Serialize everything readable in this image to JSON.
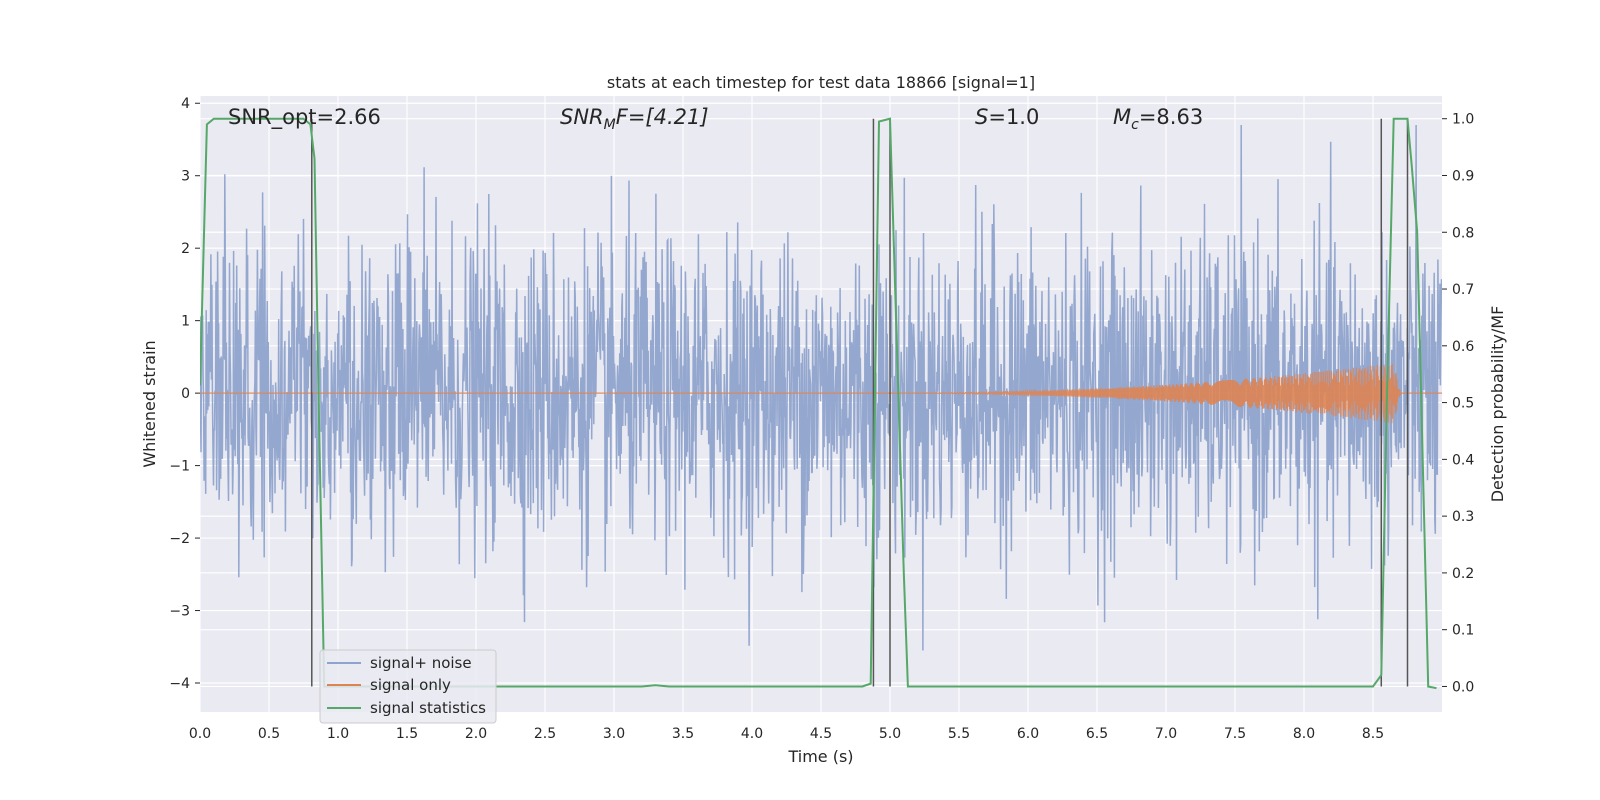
{
  "chart_data": {
    "type": "line",
    "title": "stats at each timestep for test data 18866 [signal=1]",
    "xlabel": "Time (s)",
    "ylabel": "Whitened strain",
    "ylabel_right": "Detection probability/MF",
    "xlim": [
      0,
      9.0
    ],
    "ylim": [
      -4.4,
      4.1
    ],
    "ylim_right": [
      -0.045,
      1.04
    ],
    "x_ticks": [
      0.0,
      0.5,
      1.0,
      1.5,
      2.0,
      2.5,
      3.0,
      3.5,
      4.0,
      4.5,
      5.0,
      5.5,
      6.0,
      6.5,
      7.0,
      7.5,
      8.0,
      8.5
    ],
    "y_ticks": [
      -4,
      -3,
      -2,
      -1,
      0,
      1,
      2,
      3,
      4
    ],
    "y_ticks_right": [
      0.0,
      0.1,
      0.2,
      0.3,
      0.4,
      0.5,
      0.6,
      0.7,
      0.8,
      0.9,
      1.0
    ],
    "annotations": {
      "snr_opt": "SNR_opt=2.66",
      "snr_mf_main": "SNR",
      "snr_mf_sub": "M",
      "snr_mf_rest": "F=[4.21]",
      "s_label_italic": "S",
      "s_label_rest": "=1.0",
      "mc_main": "M",
      "mc_sub": "c",
      "mc_rest": "=8.63"
    },
    "legend": [
      "signal+ noise",
      "signal only",
      "signal statistics"
    ],
    "colors": {
      "noise": "#8fa3cc",
      "signal": "#dd8452",
      "stats": "#55a868",
      "vlines": "#555555",
      "background": "#eaeaf2",
      "grid": "#ffffff"
    },
    "vertical_lines": [
      0.81,
      4.88,
      5.0,
      8.56,
      8.75
    ],
    "signal_only": {
      "start": 4.9,
      "peak": 8.65,
      "amplitude": 0.42
    },
    "signal_statistics": {
      "x": [
        0.0,
        0.05,
        0.1,
        0.15,
        0.2,
        0.3,
        0.4,
        0.5,
        0.6,
        0.7,
        0.75,
        0.8,
        0.83,
        0.86,
        0.9,
        1.0,
        1.5,
        2.0,
        2.5,
        3.0,
        3.2,
        3.3,
        3.4,
        3.6,
        4.0,
        4.5,
        4.8,
        4.86,
        4.92,
        5.0,
        5.05,
        5.1,
        5.13,
        5.2,
        5.5,
        6.0,
        6.5,
        7.0,
        7.5,
        8.0,
        8.3,
        8.5,
        8.56,
        8.6,
        8.65,
        8.7,
        8.75,
        8.78,
        8.82,
        8.85,
        8.9,
        8.96
      ],
      "y": [
        0.53,
        0.99,
        1.0,
        1.0,
        1.0,
        1.0,
        1.0,
        1.0,
        1.0,
        1.0,
        1.0,
        0.99,
        0.93,
        0.5,
        0.0,
        0.0,
        0.0,
        0.0,
        0.0,
        0.0,
        0.0,
        0.002,
        0.0,
        0.0,
        0.0,
        0.0,
        0.0,
        0.005,
        0.995,
        1.0,
        0.6,
        0.2,
        0.0,
        0.0,
        0.0,
        0.0,
        0.0,
        0.0,
        0.0,
        0.0,
        0.0,
        0.0,
        0.02,
        0.5,
        1.0,
        1.0,
        1.0,
        0.92,
        0.8,
        0.5,
        0.0,
        -0.003
      ]
    }
  }
}
